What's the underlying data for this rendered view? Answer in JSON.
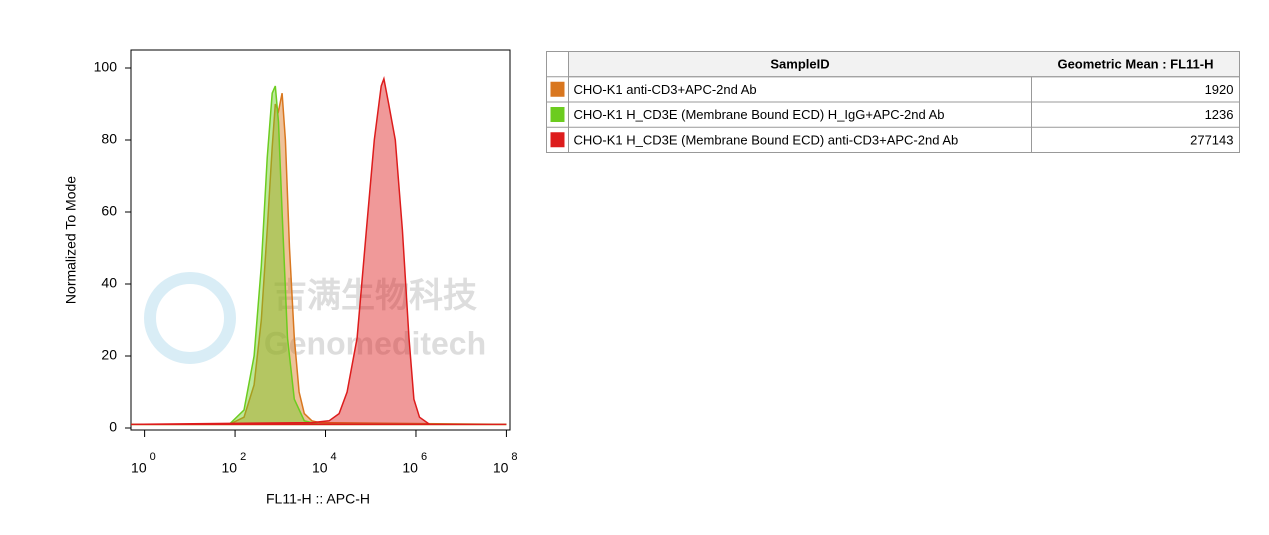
{
  "chart_data": {
    "type": "area",
    "xscale": "log",
    "x_label": "FL11-H :: APC-H",
    "y_label": "Normalized To Mode",
    "xlim": [
      0.5,
      120000000
    ],
    "ylim": [
      0,
      105
    ],
    "xticks": [
      {
        "value": 1,
        "label": "10",
        "exponent": "0"
      },
      {
        "value": 100,
        "label": "10",
        "exponent": "2"
      },
      {
        "value": 10000,
        "label": "10",
        "exponent": "4"
      },
      {
        "value": 1000000,
        "label": "10",
        "exponent": "6"
      },
      {
        "value": 100000000,
        "label": "10",
        "exponent": "8"
      }
    ],
    "yticks": [
      0,
      20,
      40,
      60,
      80,
      100
    ],
    "watermark": [
      "吉满生物科技",
      "Genomeditech"
    ],
    "legend_headers": [
      "SampleID",
      "Geometric Mean : FL11-H"
    ],
    "series": [
      {
        "name": "CHO-K1 anti-CD3+APC-2nd Ab",
        "color": "#d9771f",
        "geometric_mean": 1920,
        "x": [
          0.5,
          74,
          158,
          263,
          380,
          513,
          661,
          776,
          912,
          1096,
          1300,
          1600,
          2042,
          2600,
          3388,
          5000,
          7413,
          100000000
        ],
        "values": [
          1,
          1,
          3,
          12,
          30,
          55,
          78,
          90,
          88,
          93,
          80,
          50,
          25,
          10,
          4,
          2,
          1.5,
          1
        ]
      },
      {
        "name": "CHO-K1 H_CD3E (Membrane Bound ECD) H_IgG+APC-2nd Ab",
        "color": "#6ccc1f",
        "geometric_mean": 1236,
        "x": [
          0.5,
          74,
          158,
          263,
          380,
          513,
          661,
          776,
          912,
          1096,
          1445,
          2042,
          3388,
          7413,
          100000000
        ],
        "values": [
          1,
          1,
          5,
          20,
          45,
          75,
          93,
          95,
          85,
          60,
          25,
          8,
          2,
          1,
          1
        ]
      },
      {
        "name": "CHO-K1 H_CD3E (Membrane Bound ECD) anti-CD3+APC-2nd Ab",
        "color": "#dd1c1c",
        "geometric_mean": 277143,
        "x": [
          0.5,
          5000,
          12000,
          20000,
          30000,
          50000,
          80000,
          120000,
          170000,
          195000,
          250000,
          350000,
          500000,
          700000,
          900000,
          1200000,
          2000000,
          100000000
        ],
        "values": [
          1,
          1.5,
          2,
          4,
          10,
          25,
          55,
          80,
          95,
          97,
          90,
          80,
          55,
          25,
          8,
          3,
          1,
          1
        ]
      }
    ]
  }
}
